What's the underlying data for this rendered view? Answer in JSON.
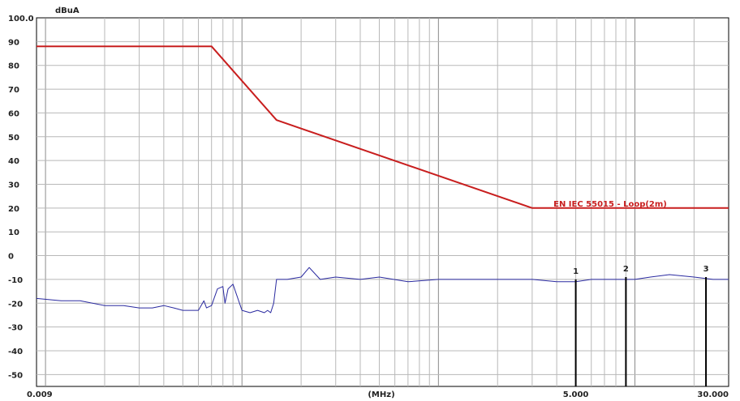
{
  "chart_data": {
    "type": "line",
    "title": "",
    "ylabel": "dBuA",
    "xlabel": "(MHz)",
    "ylim": [
      -55,
      100
    ],
    "xlim": [
      0.009,
      30.0
    ],
    "x_scale": "log",
    "grid": true,
    "y_ticks": [
      {
        "value": 100,
        "label": "100.0"
      },
      {
        "value": 90,
        "label": "90"
      },
      {
        "value": 80,
        "label": "80"
      },
      {
        "value": 70,
        "label": "70"
      },
      {
        "value": 60,
        "label": "60"
      },
      {
        "value": 50,
        "label": "50"
      },
      {
        "value": 40,
        "label": "40"
      },
      {
        "value": 30,
        "label": "30"
      },
      {
        "value": 20,
        "label": "20"
      },
      {
        "value": 10,
        "label": "10"
      },
      {
        "value": 0,
        "label": "0"
      },
      {
        "value": -10,
        "label": "-10"
      },
      {
        "value": -20,
        "label": "-20"
      },
      {
        "value": -30,
        "label": "-30"
      },
      {
        "value": -40,
        "label": "-40"
      },
      {
        "value": -50,
        "label": "-50"
      }
    ],
    "x_tick_labels": [
      {
        "value": 0.009,
        "label": "0.009"
      },
      {
        "value": 5.0,
        "label": "5.000"
      },
      {
        "value": 30.0,
        "label": "30.000"
      }
    ],
    "series": [
      {
        "name": "EN IEC 55015 - Loop(2m)",
        "color": "#c81e1e",
        "x": [
          0.009,
          0.07,
          0.15,
          3.0,
          30.0
        ],
        "y": [
          88,
          88,
          57,
          20,
          20
        ]
      },
      {
        "color": "#2a2aa0",
        "x": [
          0.009,
          0.012,
          0.015,
          0.02,
          0.025,
          0.03,
          0.035,
          0.04,
          0.045,
          0.05,
          0.055,
          0.06,
          0.064,
          0.066,
          0.07,
          0.075,
          0.08,
          0.082,
          0.085,
          0.09,
          0.1,
          0.11,
          0.12,
          0.13,
          0.135,
          0.14,
          0.145,
          0.15,
          0.17,
          0.2,
          0.22,
          0.25,
          0.3,
          0.4,
          0.5,
          0.7,
          1.0,
          1.5,
          2.0,
          3.0,
          4.0,
          5.0,
          6.0,
          7.0,
          8.0,
          10.0,
          12.0,
          15.0,
          20.0,
          25.0,
          30.0
        ],
        "y": [
          -18,
          -19,
          -19,
          -21,
          -21,
          -22,
          -22,
          -21,
          -22,
          -23,
          -23,
          -23,
          -19,
          -22,
          -21,
          -14,
          -13,
          -20,
          -14,
          -12,
          -23,
          -24,
          -23,
          -24,
          -23,
          -24,
          -20,
          -10,
          -10,
          -9,
          -5,
          -10,
          -9,
          -10,
          -9,
          -11,
          -10,
          -10,
          -10,
          -10,
          -11,
          -11,
          -10,
          -10,
          -10,
          -10,
          -9,
          -8,
          -9,
          -10,
          -10
        ]
      }
    ],
    "markers": [
      {
        "label": "1",
        "x": 5.0,
        "y": -10
      },
      {
        "label": "2",
        "x": 9.0,
        "y": -9
      },
      {
        "label": "3",
        "x": 23.0,
        "y": -9
      }
    ]
  }
}
